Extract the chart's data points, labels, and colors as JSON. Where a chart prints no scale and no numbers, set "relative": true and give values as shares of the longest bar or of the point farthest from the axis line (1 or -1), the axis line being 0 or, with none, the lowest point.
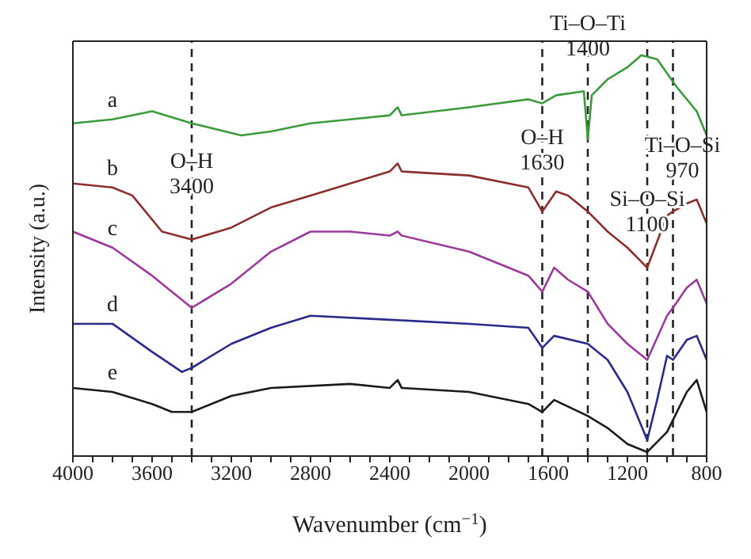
{
  "chart_data": {
    "type": "line",
    "xlabel": "Wavenumber (cm$^{−1}$)",
    "ylabel": "Intensity (a.u.)",
    "relative": true,
    "xlim": [
      4000,
      800
    ],
    "xticks": [
      4000,
      {
        "value": 3900,
        "label": null
      },
      {
        "value": 3800,
        "label": null
      },
      {
        "value": 3700,
        "label": null
      },
      3600,
      {
        "value": 3500,
        "label": null
      },
      {
        "value": 3400,
        "label": null
      },
      {
        "value": 3300,
        "label": null
      },
      3200,
      {
        "value": 3100,
        "label": null
      },
      {
        "value": 3000,
        "label": null
      },
      {
        "value": 2900,
        "label": null
      },
      2800,
      {
        "value": 2700,
        "label": null
      },
      {
        "value": 2600,
        "label": null
      },
      {
        "value": 2500,
        "label": null
      },
      2400,
      {
        "value": 2300,
        "label": null
      },
      {
        "value": 2200,
        "label": null
      },
      {
        "value": 2100,
        "label": null
      },
      2000,
      {
        "value": 1900,
        "label": null
      },
      {
        "value": 1800,
        "label": null
      },
      {
        "value": 1700,
        "label": null
      },
      1600,
      {
        "value": 1500,
        "label": null
      },
      {
        "value": 1400,
        "label": null
      },
      {
        "value": 1300,
        "label": null
      },
      1200,
      {
        "value": 1100,
        "label": null
      },
      {
        "value": 1000,
        "label": null
      },
      {
        "value": 900,
        "label": null
      },
      800
    ],
    "marker": "none",
    "line_style": "solid",
    "series": [
      {
        "name": "a",
        "color": "#3c9a3c",
        "x": [
          4000,
          3800,
          3600,
          3400,
          3150,
          3000,
          2800,
          2600,
          2400,
          2360,
          2340,
          2000,
          1700,
          1630,
          1560,
          1420,
          1400,
          1380,
          1300,
          1200,
          1130,
          1050,
          950,
          850,
          800
        ],
        "values": [
          0.83,
          0.84,
          0.86,
          0.83,
          0.8,
          0.81,
          0.83,
          0.84,
          0.85,
          0.87,
          0.85,
          0.87,
          0.89,
          0.88,
          0.9,
          0.91,
          0.79,
          0.9,
          0.94,
          0.97,
          1,
          0.99,
          0.92,
          0.86,
          0.8
        ]
      },
      {
        "name": "b",
        "color": "#8b2e2e",
        "x": [
          4000,
          3800,
          3700,
          3550,
          3400,
          3200,
          3000,
          2800,
          2600,
          2400,
          2360,
          2340,
          2000,
          1700,
          1630,
          1560,
          1500,
          1400,
          1300,
          1200,
          1100,
          1000,
          970,
          900,
          850,
          800
        ],
        "values": [
          0.68,
          0.67,
          0.65,
          0.56,
          0.54,
          0.57,
          0.62,
          0.65,
          0.68,
          0.71,
          0.73,
          0.71,
          0.7,
          0.67,
          0.61,
          0.66,
          0.65,
          0.61,
          0.56,
          0.52,
          0.47,
          0.6,
          0.61,
          0.63,
          0.64,
          0.58
        ]
      },
      {
        "name": "c",
        "color": "#9b3a9b",
        "x": [
          4000,
          3800,
          3600,
          3400,
          3200,
          3000,
          2800,
          2600,
          2400,
          2360,
          2340,
          2000,
          1800,
          1700,
          1630,
          1570,
          1500,
          1400,
          1300,
          1200,
          1100,
          1000,
          970,
          900,
          850,
          800
        ],
        "values": [
          0.56,
          0.52,
          0.45,
          0.37,
          0.43,
          0.51,
          0.56,
          0.56,
          0.55,
          0.56,
          0.55,
          0.51,
          0.47,
          0.45,
          0.41,
          0.47,
          0.44,
          0.41,
          0.33,
          0.28,
          0.24,
          0.35,
          0.37,
          0.42,
          0.44,
          0.38
        ]
      },
      {
        "name": "d",
        "color": "#2a2a8a",
        "x": [
          4000,
          3800,
          3600,
          3450,
          3400,
          3200,
          3000,
          2800,
          2400,
          2000,
          1700,
          1630,
          1570,
          1400,
          1300,
          1200,
          1100,
          1050,
          1000,
          970,
          900,
          850,
          800
        ],
        "values": [
          0.33,
          0.33,
          0.26,
          0.21,
          0.22,
          0.28,
          0.32,
          0.35,
          0.34,
          0.33,
          0.32,
          0.27,
          0.3,
          0.28,
          0.24,
          0.16,
          0.04,
          0.14,
          0.25,
          0.24,
          0.29,
          0.3,
          0.24
        ]
      },
      {
        "name": "e",
        "color": "#1a1a1a",
        "x": [
          4000,
          3800,
          3600,
          3500,
          3400,
          3200,
          3000,
          2600,
          2400,
          2360,
          2340,
          2000,
          1700,
          1630,
          1570,
          1400,
          1300,
          1200,
          1100,
          1000,
          900,
          850,
          800
        ],
        "values": [
          0.17,
          0.16,
          0.13,
          0.11,
          0.11,
          0.15,
          0.17,
          0.18,
          0.17,
          0.19,
          0.17,
          0.16,
          0.13,
          0.11,
          0.14,
          0.1,
          0.07,
          0.03,
          0.01,
          0.06,
          0.16,
          0.19,
          0.11
        ]
      }
    ],
    "ref_lines": [
      {
        "axis": "x",
        "value": 3400,
        "label": "O–H 3400",
        "line_style": "dashed",
        "color": "#222222"
      },
      {
        "axis": "x",
        "value": 1630,
        "label": "O–H 1630",
        "line_style": "dashed",
        "color": "#222222"
      },
      {
        "axis": "x",
        "value": 1400,
        "label": "Ti–O–Ti 1400",
        "line_style": "dashed",
        "color": "#222222"
      },
      {
        "axis": "x",
        "value": 1100,
        "label": "Si–O–Si 1100",
        "line_style": "dashed",
        "color": "#222222"
      },
      {
        "axis": "x",
        "value": 970,
        "label": "Ti–O–Si 970",
        "line_style": "dashed",
        "color": "#222222"
      }
    ]
  }
}
